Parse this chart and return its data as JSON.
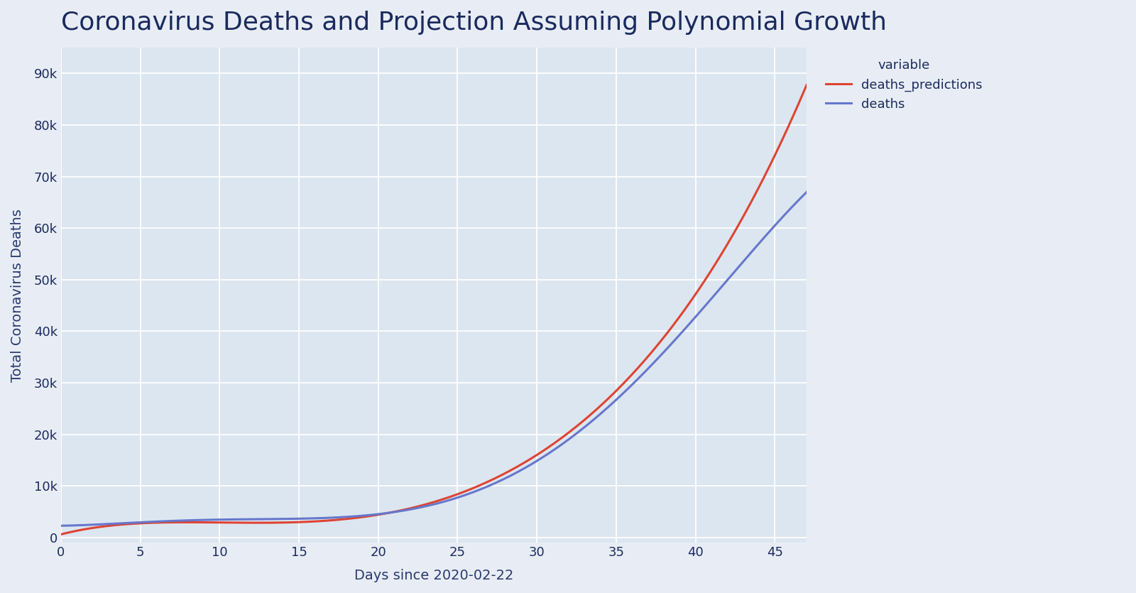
{
  "title": "Coronavirus Deaths and Projection Assuming Polynomial Growth",
  "xlabel": "Days since 2020-02-22",
  "ylabel": "Total Coronavirus Deaths",
  "x_min": 0,
  "x_max": 47,
  "y_min": -1000,
  "y_max": 95000,
  "yticks": [
    0,
    10000,
    20000,
    30000,
    40000,
    50000,
    60000,
    70000,
    80000,
    90000
  ],
  "ytick_labels": [
    "0",
    "10k",
    "20k",
    "30k",
    "40k",
    "50k",
    "60k",
    "70k",
    "80k",
    "90k"
  ],
  "xticks": [
    0,
    5,
    10,
    15,
    20,
    25,
    30,
    35,
    40,
    45
  ],
  "deaths_color": "#6677cc",
  "predictions_color": "#dd4433",
  "background_color": "#e8edf5",
  "plot_bg_color": "#dce6f0",
  "title_color": "#1a2a5e",
  "axis_label_color": "#2a3a6e",
  "legend_title": "variable",
  "legend_label_deaths": "deaths",
  "legend_label_predictions": "deaths_predictions",
  "title_fontsize": 26,
  "label_fontsize": 14,
  "tick_fontsize": 13,
  "legend_fontsize": 13,
  "deaths_x": [
    0,
    3,
    5,
    7,
    10,
    13,
    15,
    17,
    20,
    22,
    25,
    27,
    30,
    33,
    35,
    37,
    40,
    43,
    45,
    47
  ],
  "deaths_y": [
    2200,
    2700,
    3100,
    3300,
    3500,
    3500,
    3500,
    3800,
    4500,
    5500,
    7500,
    10000,
    16000,
    22000,
    26000,
    32000,
    42000,
    54000,
    62000,
    66000
  ],
  "pred_x": [
    0,
    3,
    5,
    7,
    10,
    13,
    15,
    17,
    20,
    22,
    25,
    27,
    30,
    33,
    35,
    37,
    40,
    43,
    45,
    47
  ],
  "pred_y": [
    1000,
    1800,
    2400,
    2900,
    3300,
    3300,
    3300,
    3600,
    4200,
    5200,
    7500,
    10500,
    17000,
    24000,
    28000,
    35000,
    47000,
    62000,
    74000,
    88000
  ]
}
